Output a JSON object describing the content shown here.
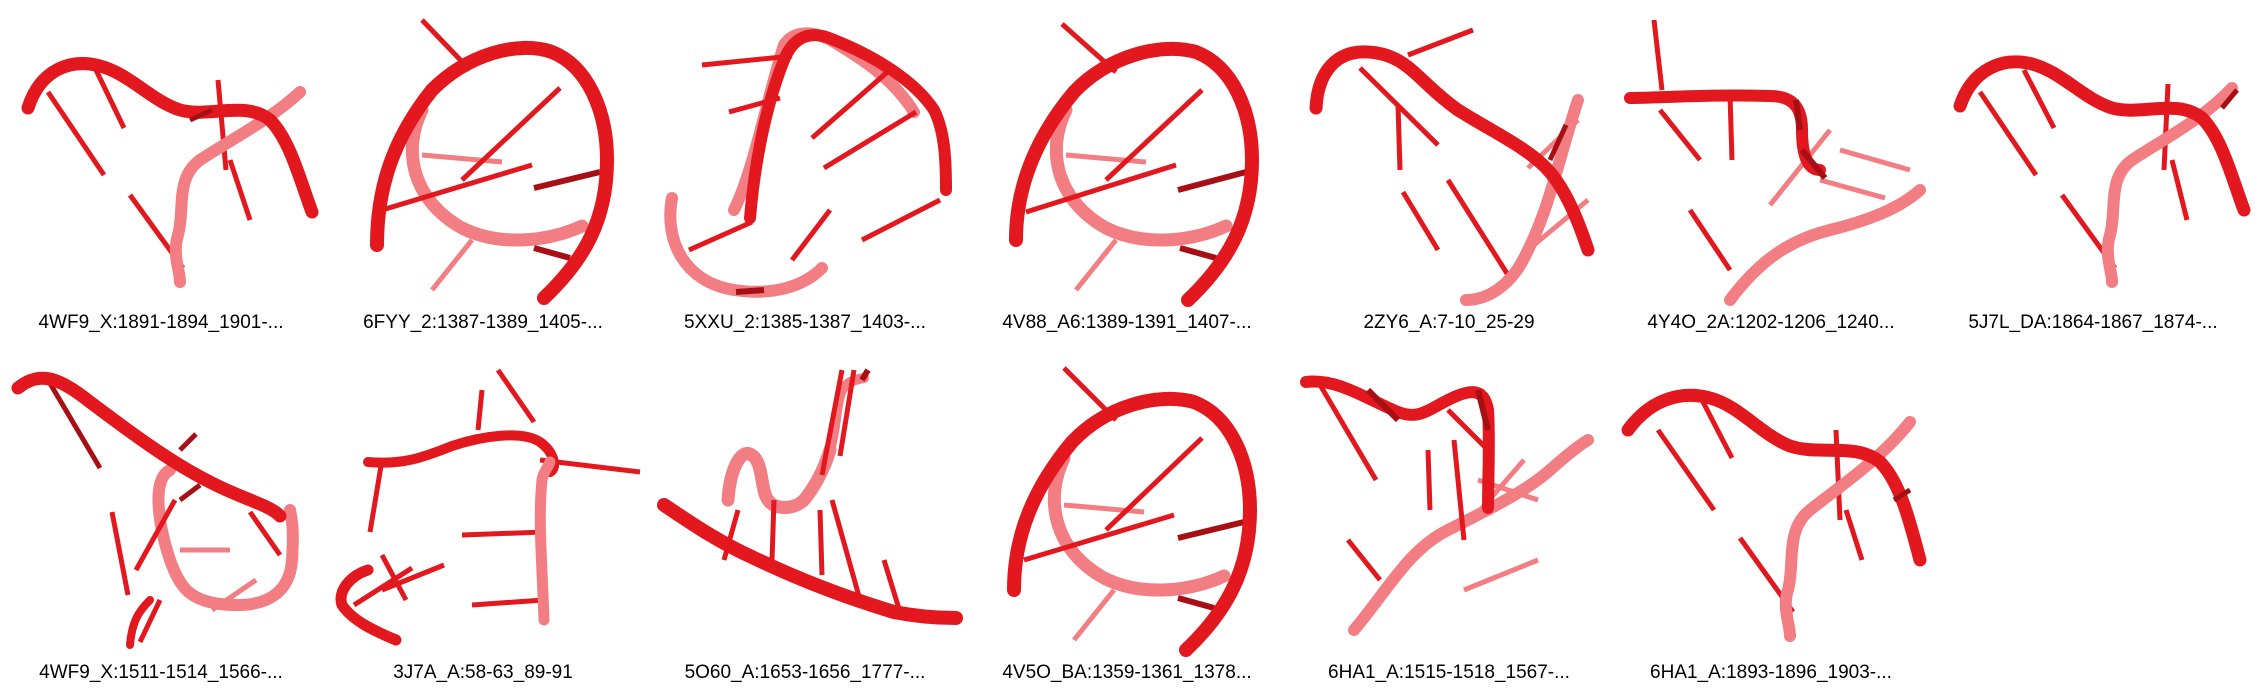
{
  "colors": {
    "strand": "#e2181e",
    "strand_light": "#f27d83",
    "strand_dark": "#a80f14",
    "caption_text": "#000000",
    "background": "#ffffff"
  },
  "structures": [
    {
      "label": "4WF9_X:1891-1894_1901-...",
      "icon": "rna-3d-structure-icon"
    },
    {
      "label": "6FYY_2:1387-1389_1405-...",
      "icon": "rna-3d-structure-icon"
    },
    {
      "label": "5XXU_2:1385-1387_1403-...",
      "icon": "rna-3d-structure-icon"
    },
    {
      "label": "4V88_A6:1389-1391_1407-...",
      "icon": "rna-3d-structure-icon"
    },
    {
      "label": "2ZY6_A:7-10_25-29",
      "icon": "rna-3d-structure-icon"
    },
    {
      "label": "4Y4O_2A:1202-1206_1240...",
      "icon": "rna-3d-structure-icon"
    },
    {
      "label": "5J7L_DA:1864-1867_1874-...",
      "icon": "rna-3d-structure-icon"
    },
    {
      "label": "4WF9_X:1511-1514_1566-...",
      "icon": "rna-3d-structure-icon"
    },
    {
      "label": "3J7A_A:58-63_89-91",
      "icon": "rna-3d-structure-icon"
    },
    {
      "label": "5O60_A:1653-1656_1777-...",
      "icon": "rna-3d-structure-icon"
    },
    {
      "label": "4V5O_BA:1359-1361_1378...",
      "icon": "rna-3d-structure-icon"
    },
    {
      "label": "6HA1_A:1515-1518_1567-...",
      "icon": "rna-3d-structure-icon"
    },
    {
      "label": "6HA1_A:1893-1896_1903-...",
      "icon": "rna-3d-structure-icon"
    }
  ]
}
